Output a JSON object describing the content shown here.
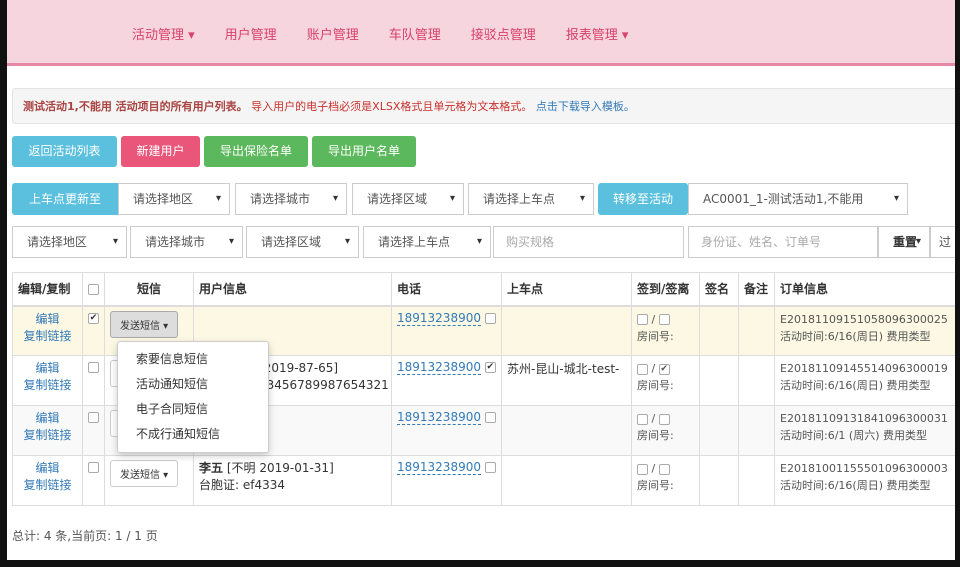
{
  "nav": [
    "活动管理 ▾",
    "用户管理",
    "账户管理",
    "车队管理",
    "接驳点管理",
    "报表管理 ▾"
  ],
  "notice": {
    "title": "测试活动1,不能用 活动项目的所有用户列表。",
    "hint": "导入用户的电子档必须是XLSX格式且单元格为文本格式。",
    "link": "点击下载导入模板。"
  },
  "buttons": {
    "back": "返回活动列表",
    "new_user": "新建用户",
    "export_insurance": "导出保险名单",
    "export_users": "导出用户名单"
  },
  "filter1": {
    "update_label": "上车点更新至",
    "region": "请选择地区",
    "city": "请选择城市",
    "area": "请选择区域",
    "stop": "请选择上车点",
    "transfer_label": "转移至活动",
    "activity": "AC0001_1-测试活动1,不能用"
  },
  "filter2": {
    "region": "请选择地区",
    "city": "请选择城市",
    "area": "请选择区域",
    "stop": "请选择上车点",
    "spec_placeholder": "购买规格",
    "search_placeholder": "身份证、姓名、订单号",
    "reset": "重置",
    "more": "过"
  },
  "table": {
    "headers": [
      "编辑/复制",
      "",
      "短信",
      "用户信息",
      "电话",
      "上车点",
      "签到/签离",
      "签名",
      "备注",
      "订单信息"
    ],
    "edit": "编辑",
    "copy_link": "复制链接",
    "sms_button": "发送短信 ▾",
    "room": "房间号:",
    "rows": [
      {
        "checked": true,
        "user1": "",
        "user2": "",
        "phone": "18913238900",
        "phone_cb": false,
        "stop": "",
        "in": false,
        "out": false,
        "order": "E20181109151058096300025",
        "time": "活动时间:6/16(周日)  费用类型"
      },
      {
        "checked": false,
        "user1": "[2019-87-65]",
        "user2": "23456789987654321",
        "phone": "18913238900",
        "phone_cb": true,
        "stop": "苏州-昆山-城北-test-",
        "in": false,
        "out": true,
        "order": "E20181109145514096300019",
        "time": "活动时间:6/16(周日)  费用类型"
      },
      {
        "checked": false,
        "user1": "",
        "user2": "",
        "phone": "18913238900",
        "phone_cb": false,
        "stop": "",
        "in": false,
        "out": false,
        "order": "E20181109131841096300031",
        "time": "活动时间:6/1 (周六)  费用类型"
      },
      {
        "checked": false,
        "user_name": "李五",
        "user1": " [不明 2019-01-31]",
        "user2": "台胞证: ef4334",
        "phone": "18913238900",
        "phone_cb": false,
        "stop": "",
        "in": false,
        "out": false,
        "order": "E20181001155501096300003",
        "time": "活动时间:6/16(周日)  费用类型"
      }
    ]
  },
  "sms_menu": [
    "索要信息短信",
    "活动通知短信",
    "电子合同短信",
    "不成行通知短信"
  ],
  "footer": "总计: 4 条,当前页: 1 / 1 页"
}
